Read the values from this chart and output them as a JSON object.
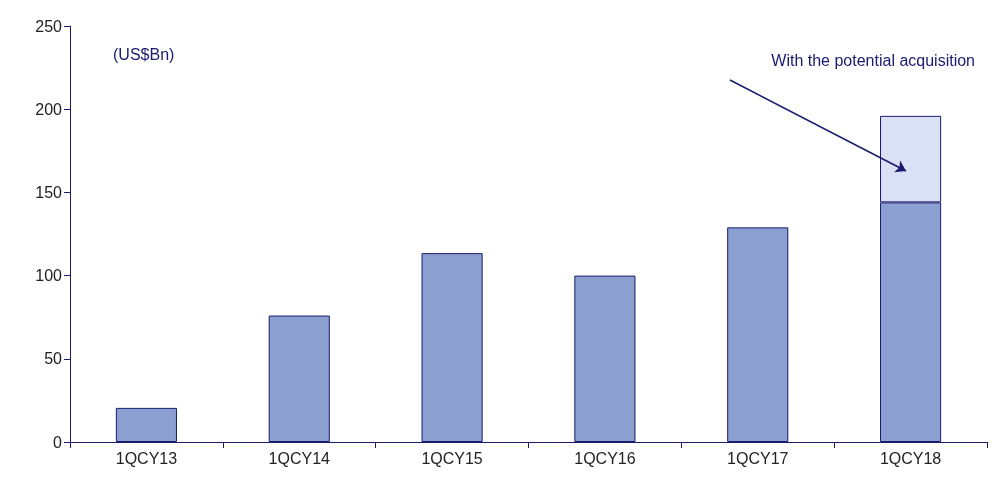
{
  "chart_data": {
    "type": "bar",
    "stacked": true,
    "categories": [
      "1QCY13",
      "1QCY14",
      "1QCY15",
      "1QCY16",
      "1QCY17",
      "1QCY18"
    ],
    "series": [
      {
        "color": "#8b9fd1",
        "values": [
          20.5,
          76,
          113.5,
          100,
          129,
          144
        ]
      },
      {
        "color": "#dae1f4",
        "values": [
          null,
          null,
          null,
          null,
          null,
          52
        ]
      }
    ],
    "ylim": [
      0,
      250
    ],
    "yticks": [
      0,
      50,
      100,
      150,
      200,
      250
    ],
    "grid": false,
    "annotations": [
      "(US$Bn)",
      "With the potential acquisition"
    ]
  }
}
